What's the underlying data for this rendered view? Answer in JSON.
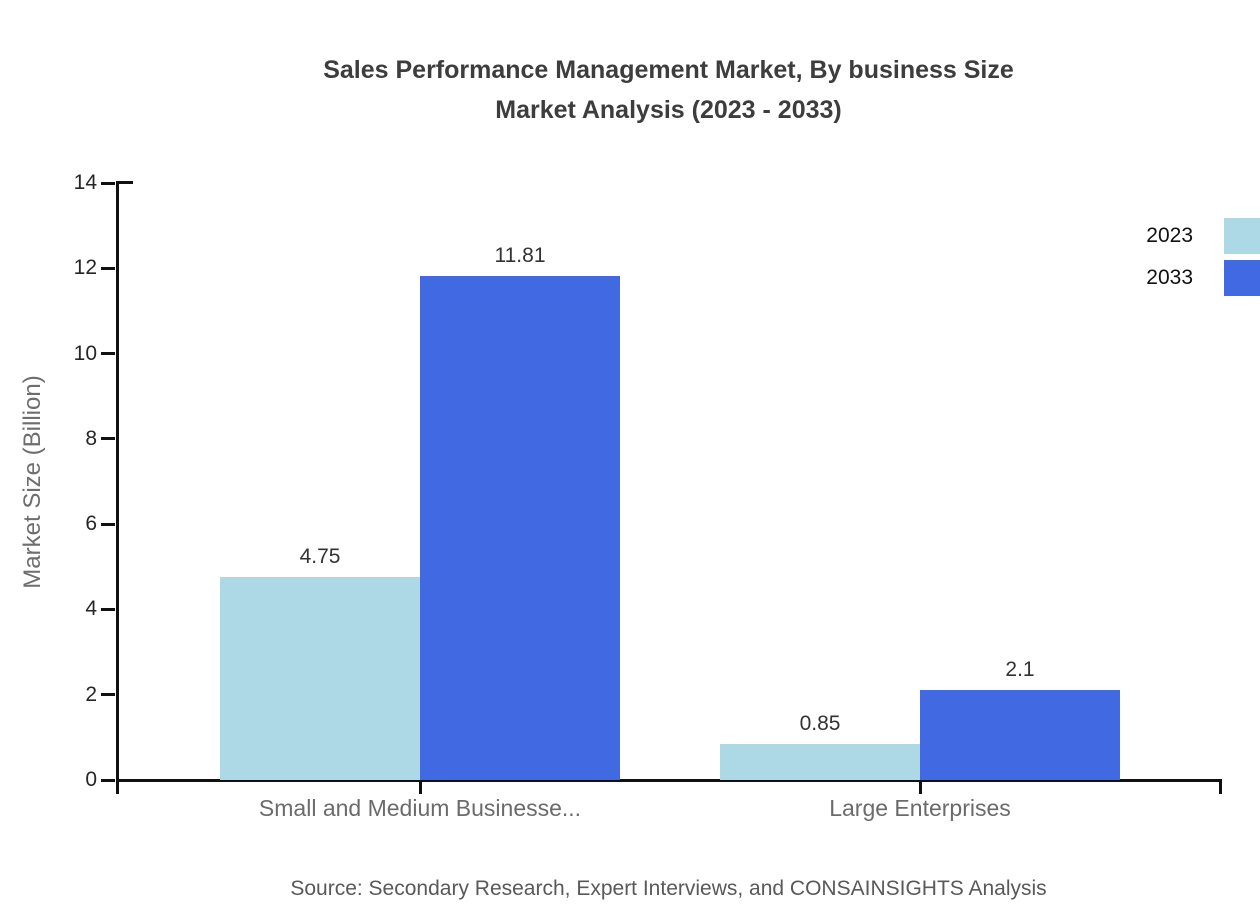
{
  "chart_data": {
    "type": "bar",
    "title_lines": [
      "Sales Performance Management Market, By business Size",
      "Market Analysis (2023 - 2033)"
    ],
    "categories": [
      "Small and Medium Businesse...",
      "Large Enterprises"
    ],
    "series": [
      {
        "name": "2023",
        "color": "#ADD8E6",
        "values": [
          4.75,
          0.85
        ],
        "labels": [
          "4.75",
          "0.85"
        ]
      },
      {
        "name": "2033",
        "color": "#4169E1",
        "values": [
          11.81,
          2.1
        ],
        "labels": [
          "11.81",
          "2.1"
        ]
      }
    ],
    "ylabel": "Market Size (Billion)",
    "ylim": [
      0,
      14
    ],
    "yticks": [
      0,
      2,
      4,
      6,
      8,
      10,
      12,
      14
    ],
    "grid": false,
    "legend_position": "top-right",
    "source": "Source: Secondary Research, Expert Interviews, and CONSAINSIGHTS Analysis"
  }
}
